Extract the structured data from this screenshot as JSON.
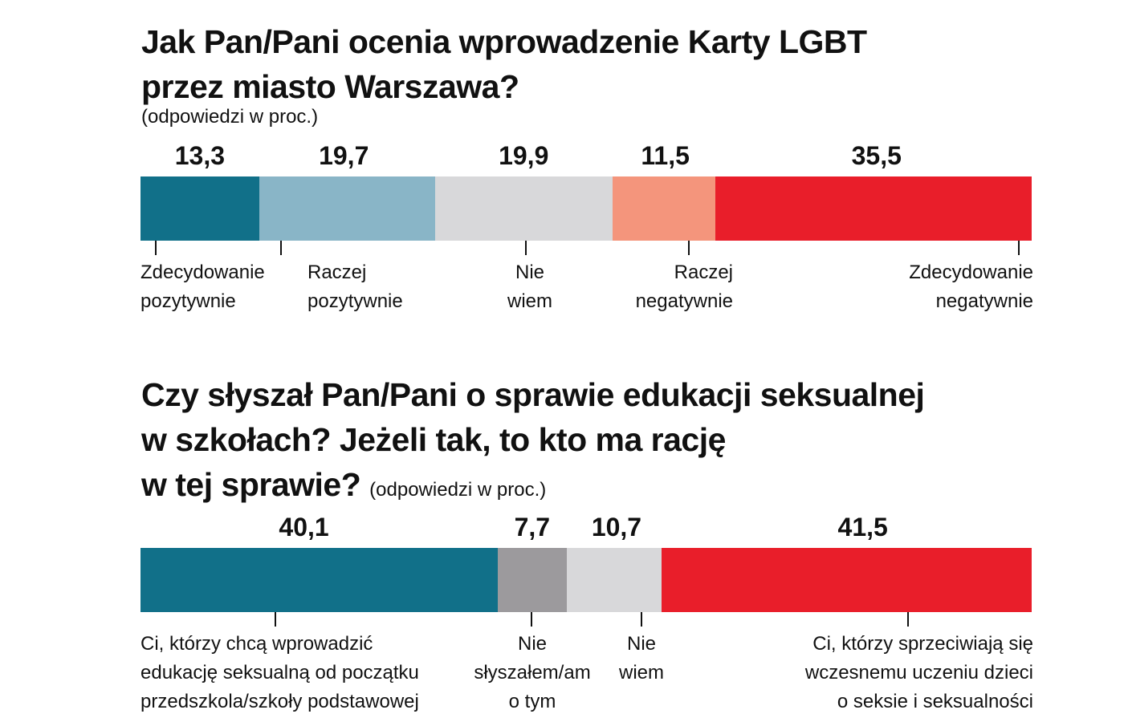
{
  "chart_data": [
    {
      "type": "bar",
      "orientation": "horizontal-stacked",
      "title_lines": [
        "Jak Pan/Pani ocenia wprowadzenie Karty LGBT",
        "przez miasto Warszawa?"
      ],
      "subtitle": "(odpowiedzi w proc.)",
      "categories": [
        [
          "Zdecydowanie",
          "pozytywnie"
        ],
        [
          "Raczej",
          "pozytywnie"
        ],
        [
          "Nie",
          "wiem"
        ],
        [
          "Raczej",
          "negatywnie"
        ],
        [
          "Zdecydowanie",
          "negatywnie"
        ]
      ],
      "values": [
        13.3,
        19.7,
        19.9,
        11.5,
        35.5
      ],
      "value_labels": [
        "13,3",
        "19,7",
        "19,9",
        "11,5",
        "35,5"
      ],
      "colors": [
        "#117089",
        "#89b5c7",
        "#d8d8da",
        "#f4957c",
        "#e91e2a"
      ]
    },
    {
      "type": "bar",
      "orientation": "horizontal-stacked",
      "title_lines": [
        "Czy słyszał Pan/Pani o sprawie edukacji seksualnej",
        "w szkołach? Jeżeli tak, to kto ma rację",
        "w tej sprawie?"
      ],
      "subtitle": "(odpowiedzi w proc.)",
      "categories": [
        [
          "Ci, którzy chcą wprowadzić",
          "edukację seksualną od początku",
          "przedszkola/szkoły podstawowej"
        ],
        [
          "Nie",
          "słyszałem/am",
          "o tym"
        ],
        [
          "Nie",
          "wiem"
        ],
        [
          "Ci, którzy sprzeciwiają się",
          "wczesnemu uczeniu dzieci",
          "o seksie i seksualności"
        ]
      ],
      "values": [
        40.1,
        7.7,
        10.7,
        41.5
      ],
      "value_labels": [
        "40,1",
        "7,7",
        "10,7",
        "41,5"
      ],
      "colors": [
        "#117089",
        "#9c9a9d",
        "#d8d8da",
        "#e91e2a"
      ]
    }
  ]
}
